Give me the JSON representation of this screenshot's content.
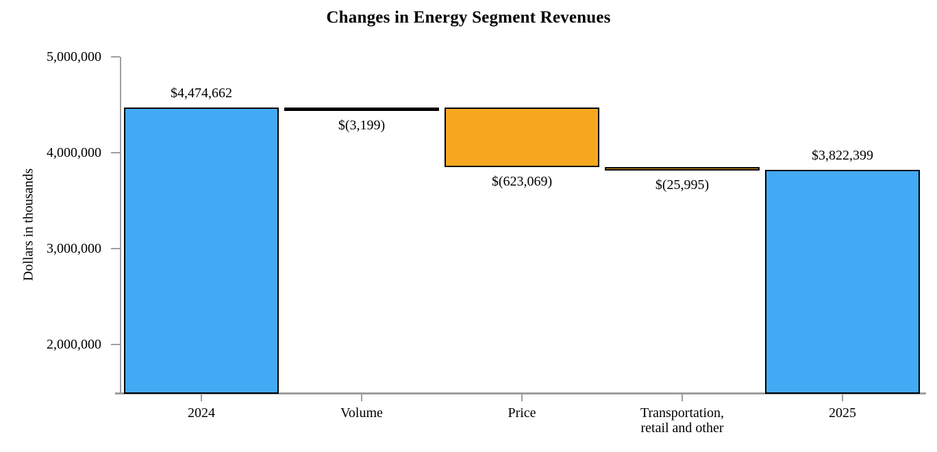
{
  "title": "Changes in Energy Segment Revenues",
  "chart_data": {
    "type": "bar",
    "subtype": "waterfall",
    "title": "Changes in Energy Segment Revenues",
    "xlabel": "",
    "ylabel": "Dollars in thousands",
    "ylim": [
      1500000,
      5000000
    ],
    "yticks": [
      2000000,
      3000000,
      4000000,
      5000000
    ],
    "ytick_labels": [
      "2,000,000",
      "3,000,000",
      "4,000,000",
      "5,000,000"
    ],
    "grid": "off",
    "legend": "none",
    "categories": [
      "2024",
      "Volume",
      "Price",
      "Transportation,\nretail and other",
      "2025"
    ],
    "bars": [
      {
        "category": "2024",
        "kind": "total",
        "value": 4474662,
        "display": "$4,474,662",
        "label_position": "above",
        "color": "#42aaf5"
      },
      {
        "category": "Volume",
        "kind": "change",
        "value": -3199,
        "display": "$(3,199)",
        "label_position": "below",
        "color": "#000000"
      },
      {
        "category": "Price",
        "kind": "change",
        "value": -623069,
        "display": "$(623,069)",
        "label_position": "below",
        "color": "#f7a71f"
      },
      {
        "category": "Transportation,\nretail and other",
        "kind": "change",
        "value": -25995,
        "display": "$(25,995)",
        "label_position": "below",
        "color": "#f7a71f"
      },
      {
        "category": "2025",
        "kind": "total",
        "value": 3822399,
        "display": "$3,822,399",
        "label_position": "above",
        "color": "#42aaf5"
      }
    ],
    "colors": {
      "total_bar": "#42aaf5",
      "decrease_bar": "#f7a71f",
      "tiny_change_bar": "#000000",
      "bar_border": "#000000",
      "axis": "#9e9e9e",
      "text": "#000000",
      "background": "#ffffff"
    }
  }
}
